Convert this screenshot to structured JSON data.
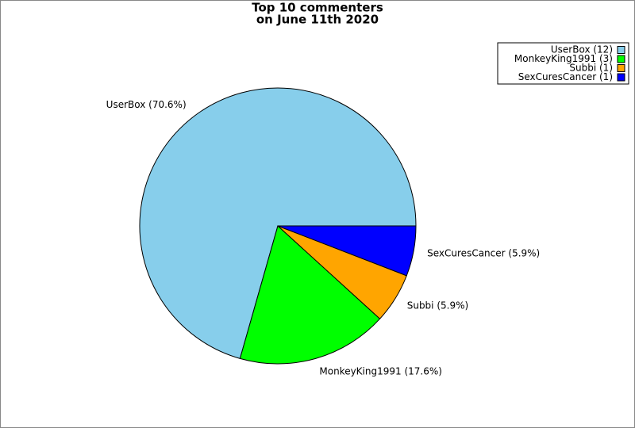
{
  "chart_data": {
    "type": "pie",
    "title": [
      "Top 10 commenters",
      "on June 11th 2020"
    ],
    "categories": [
      "UserBox",
      "MonkeyKing1991",
      "Subbi",
      "SexCuresCancer"
    ],
    "values": [
      12,
      3,
      1,
      1
    ],
    "colors": [
      "#87ceeb",
      "#00ff00",
      "#ffa500",
      "#0000ff"
    ],
    "legend_labels": [
      "UserBox (12)",
      "MonkeyKing1991 (3)",
      "Subbi (1)",
      "SexCuresCancer (1)"
    ],
    "value_labels": [
      "UserBox (70.6%)",
      "MonkeyKing1991 (17.6%)",
      "Subbi (5.9%)",
      "SexCuresCancer (5.9%)"
    ],
    "legend": "upper right"
  }
}
